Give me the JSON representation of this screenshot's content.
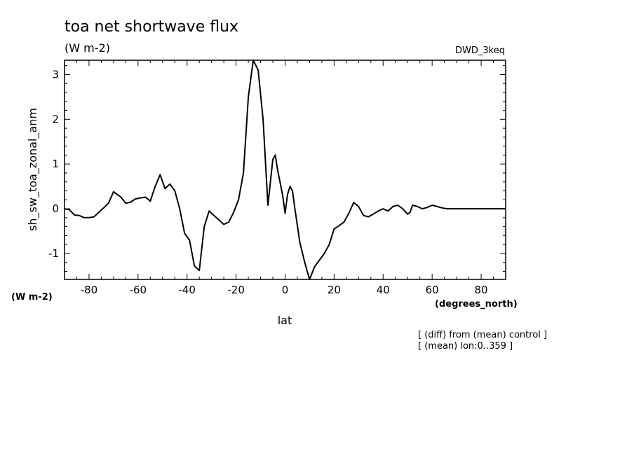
{
  "chart_data": {
    "type": "line",
    "title": "toa net shortwave flux",
    "units": "(W m-2)",
    "dataset": "DWD_3keq",
    "ylabel": "sh_sw_toa_zonal_anm",
    "y_units": "(W m-2)",
    "xlabel": "lat",
    "x_units": "(degrees_north)",
    "annotations": [
      "[ (diff) from (mean) control ]",
      "[ (mean) lon:0..359 ]"
    ],
    "xlim": [
      -90,
      90
    ],
    "ylim": [
      -1.58,
      3.32
    ],
    "x_ticks": [
      -80,
      -60,
      -40,
      -20,
      0,
      20,
      40,
      60,
      80
    ],
    "x_tick_labels": [
      "-80",
      "-60",
      "-40",
      "-20",
      "0",
      "20",
      "40",
      "60",
      "80"
    ],
    "y_ticks": [
      -1,
      0,
      1,
      2,
      3
    ],
    "y_tick_labels": [
      "-1",
      "0",
      "1",
      "2",
      "3"
    ],
    "grid": false,
    "series": [
      {
        "color": "#000000",
        "x": [
          -90,
          -88,
          -86,
          -84,
          -82,
          -80,
          -78,
          -76,
          -74,
          -72,
          -70,
          -68,
          -67,
          -65,
          -63,
          -61,
          -59,
          -57,
          -55,
          -53,
          -51,
          -49,
          -47,
          -45,
          -43,
          -41,
          -39,
          -37,
          -35,
          -33,
          -31,
          -29,
          -27,
          -25,
          -23,
          -21,
          -19,
          -17,
          -15,
          -13,
          -11,
          -9,
          -7,
          -5,
          -4,
          -3,
          -2,
          -1,
          0,
          1,
          2,
          3,
          4,
          6,
          8,
          10,
          12,
          14,
          16,
          18,
          20,
          22,
          24,
          26,
          28,
          30,
          32,
          34,
          36,
          38,
          40,
          42,
          44,
          46,
          48,
          50,
          51,
          52,
          54,
          56,
          58,
          60,
          62,
          64,
          66,
          68,
          70,
          72,
          74,
          76,
          78,
          80,
          82,
          84,
          86,
          88,
          90
        ],
        "y": [
          0.0,
          -0.02,
          -0.14,
          -0.15,
          -0.2,
          -0.2,
          -0.18,
          -0.08,
          0.02,
          0.13,
          0.38,
          0.3,
          0.26,
          0.12,
          0.15,
          0.22,
          0.24,
          0.26,
          0.17,
          0.5,
          0.76,
          0.45,
          0.55,
          0.4,
          0.0,
          -0.55,
          -0.7,
          -1.28,
          -1.38,
          -0.4,
          -0.05,
          -0.15,
          -0.25,
          -0.35,
          -0.3,
          -0.08,
          0.2,
          0.8,
          2.5,
          3.32,
          3.1,
          2.0,
          0.08,
          1.1,
          1.2,
          0.85,
          0.58,
          0.3,
          -0.1,
          0.32,
          0.5,
          0.4,
          0.0,
          -0.75,
          -1.2,
          -1.58,
          -1.3,
          -1.15,
          -1.0,
          -0.8,
          -0.45,
          -0.38,
          -0.3,
          -0.1,
          0.14,
          0.05,
          -0.15,
          -0.18,
          -0.12,
          -0.05,
          0.0,
          -0.05,
          0.05,
          0.08,
          0.0,
          -0.12,
          -0.08,
          0.08,
          0.05,
          0.0,
          0.03,
          0.08,
          0.05,
          0.02,
          0.0,
          0.0,
          0.0,
          0.0,
          0.0,
          0.0,
          0.0,
          0.0,
          0.0,
          0.0,
          0.0,
          0.0,
          0.0
        ]
      }
    ]
  }
}
